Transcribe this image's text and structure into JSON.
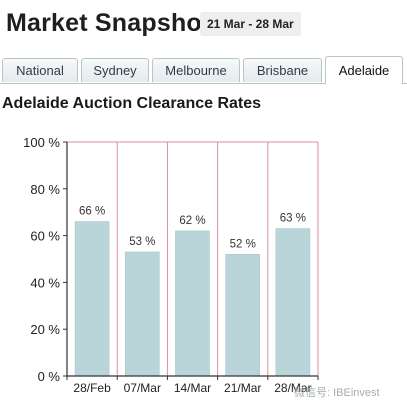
{
  "header": {
    "title": "Market Snapshot",
    "date_range": "21 Mar - 28 Mar"
  },
  "tabs": [
    {
      "label": "National",
      "active": false
    },
    {
      "label": "Sydney",
      "active": false
    },
    {
      "label": "Melbourne",
      "active": false
    },
    {
      "label": "Brisbane",
      "active": false
    },
    {
      "label": "Adelaide",
      "active": true
    }
  ],
  "watermark": "微信号: IBEinvest",
  "colors": {
    "bar": "#b9d5da",
    "bar_stroke": "#a8c6cc",
    "grid": "#d88fa6",
    "axis": "#333333"
  },
  "chart_data": {
    "type": "bar",
    "title": "Adelaide Auction Clearance Rates",
    "categories": [
      "28/Feb",
      "07/Mar",
      "14/Mar",
      "21/Mar",
      "28/Mar"
    ],
    "values": [
      66,
      53,
      62,
      52,
      63
    ],
    "data_labels": [
      "66 %",
      "53 %",
      "62 %",
      "52 %",
      "63 %"
    ],
    "ylim": [
      0,
      100
    ],
    "yticks": [
      "0 %",
      "20 %",
      "40 %",
      "60 %",
      "80 %",
      "100 %"
    ],
    "grid": "vertical",
    "xlabel": "",
    "ylabel": ""
  }
}
